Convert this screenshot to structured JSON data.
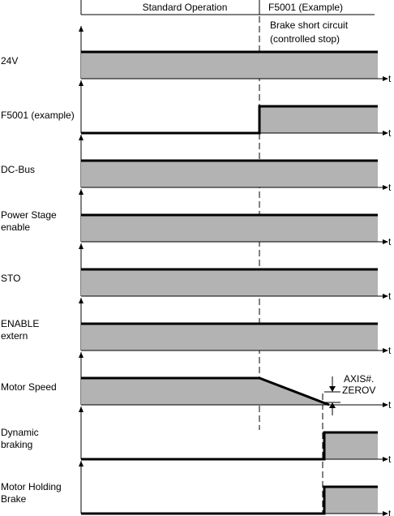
{
  "header": {
    "phase_standard": "Standard Operation",
    "phase_fault": "F5001 (Example)",
    "fault_note_line1": "Brake short circuit",
    "fault_note_line2": "(controlled stop)"
  },
  "time_label": "t",
  "signals": [
    {
      "id": "24v",
      "label_lines": [
        "24V"
      ],
      "shape": "on"
    },
    {
      "id": "f5001",
      "label_lines": [
        "F5001 (example)"
      ],
      "shape": "step_up_at_fault"
    },
    {
      "id": "dc-bus",
      "label_lines": [
        "DC-Bus"
      ],
      "shape": "on"
    },
    {
      "id": "power-stage-enable",
      "label_lines": [
        "Power Stage",
        "enable"
      ],
      "shape": "on"
    },
    {
      "id": "sto",
      "label_lines": [
        "STO"
      ],
      "shape": "on"
    },
    {
      "id": "enable-extern",
      "label_lines": [
        "ENABLE",
        "extern"
      ],
      "shape": "on"
    },
    {
      "id": "motor-speed",
      "label_lines": [
        "Motor Speed"
      ],
      "shape": "ramp_down_at_fault"
    },
    {
      "id": "dynamic-braking",
      "label_lines": [
        "Dynamic",
        "braking"
      ],
      "shape": "step_up_at_zero"
    },
    {
      "id": "motor-holding-brake",
      "label_lines": [
        "Motor Holding",
        "Brake"
      ],
      "shape": "step_up_at_zero"
    }
  ],
  "annotation": {
    "line1": "AXIS#.",
    "line2": "ZEROV"
  },
  "colors": {
    "signal_fill": "#b3b3b3",
    "line": "#000000",
    "background": "#ffffff"
  }
}
